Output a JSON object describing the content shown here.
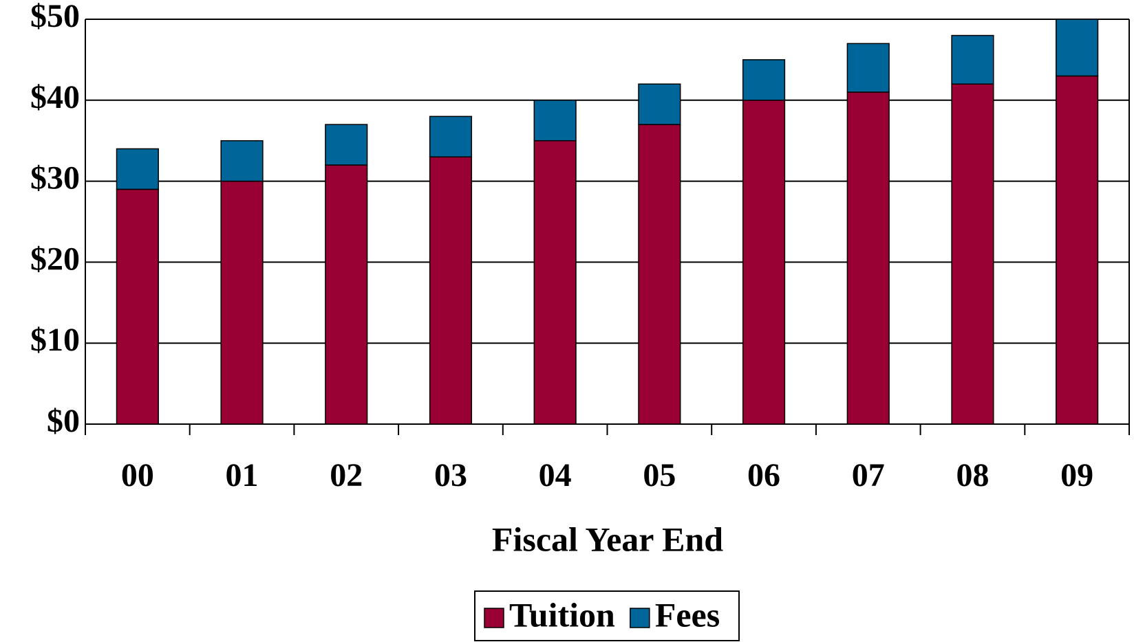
{
  "chart_data": {
    "type": "stacked_bar",
    "x_label": "Fiscal Year End",
    "categories": [
      "00",
      "01",
      "02",
      "03",
      "04",
      "05",
      "06",
      "07",
      "08",
      "09"
    ],
    "series": [
      {
        "name": "Tuition",
        "color": "#990033",
        "values": [
          29,
          30,
          32,
          33,
          35,
          37,
          40,
          41,
          42,
          43
        ]
      },
      {
        "name": "Fees",
        "color": "#006699",
        "values": [
          5,
          5,
          5,
          5,
          5,
          5,
          5,
          6,
          6,
          7
        ]
      }
    ],
    "ylim": [
      0,
      50
    ],
    "yticks": [
      {
        "value": 0,
        "label": "$0"
      },
      {
        "value": 10,
        "label": "$10"
      },
      {
        "value": 20,
        "label": "$20"
      },
      {
        "value": 30,
        "label": "$30"
      },
      {
        "value": 40,
        "label": "$40"
      },
      {
        "value": 50,
        "label": "$50"
      }
    ],
    "grid": true,
    "legend": "bottom"
  }
}
